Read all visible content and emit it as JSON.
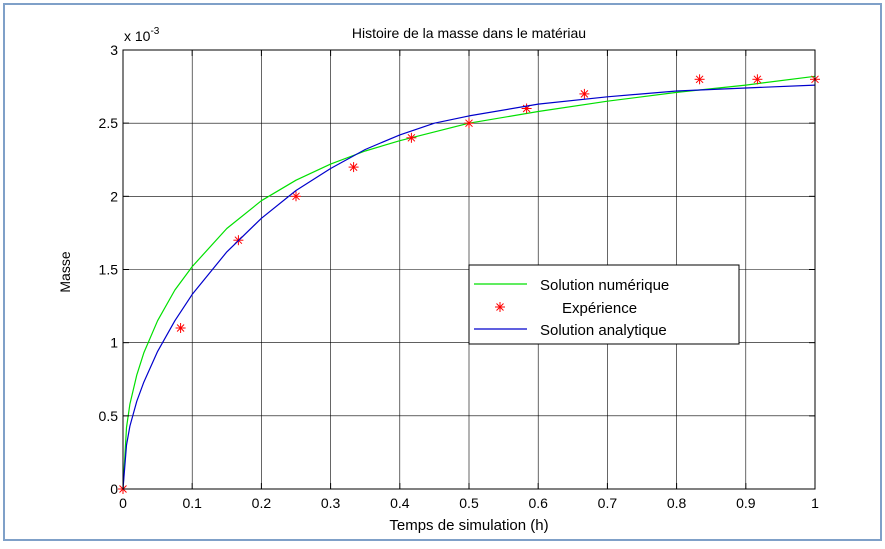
{
  "chart_data": {
    "type": "line",
    "title": "Histoire de la masse dans le matériau",
    "xlabel": "Temps de simulation  (h)",
    "ylabel": "Masse",
    "exponent_label": "x 10",
    "exponent_power": "-3",
    "xlim": [
      0,
      1
    ],
    "ylim": [
      0,
      3
    ],
    "x_ticks": [
      0,
      0.1,
      0.2,
      0.3,
      0.4,
      0.5,
      0.6,
      0.7,
      0.8,
      0.9,
      1
    ],
    "x_tick_labels": [
      "0",
      "0.1",
      "0.2",
      "0.3",
      "0.4",
      "0.5",
      "0.6",
      "0.7",
      "0.8",
      "0.9",
      "1"
    ],
    "y_ticks": [
      0,
      0.5,
      1,
      1.5,
      2,
      2.5,
      3
    ],
    "y_tick_labels": [
      "0",
      "0.5",
      "1",
      "1.5",
      "2",
      "2.5",
      "3"
    ],
    "grid": true,
    "legend_position": "center-right",
    "series": [
      {
        "name": "Solution numérique",
        "style": "line",
        "color": "#00e000",
        "x": [
          0,
          0.005,
          0.01,
          0.02,
          0.03,
          0.05,
          0.075,
          0.1,
          0.15,
          0.2,
          0.25,
          0.3,
          0.35,
          0.4,
          0.45,
          0.5,
          0.6,
          0.7,
          0.8,
          0.9,
          1.0
        ],
        "y": [
          0,
          0.42,
          0.58,
          0.78,
          0.93,
          1.15,
          1.36,
          1.52,
          1.78,
          1.97,
          2.11,
          2.22,
          2.31,
          2.38,
          2.44,
          2.5,
          2.58,
          2.65,
          2.71,
          2.76,
          2.82
        ]
      },
      {
        "name": "Expérience",
        "style": "marker",
        "color": "#ff0000",
        "x": [
          0,
          0.0833,
          0.1667,
          0.25,
          0.3333,
          0.4167,
          0.5,
          0.5833,
          0.6667,
          0.8333,
          0.9167,
          1.0
        ],
        "y": [
          0,
          1.1,
          1.7,
          2.0,
          2.2,
          2.4,
          2.5,
          2.6,
          2.7,
          2.8,
          2.8,
          2.8
        ]
      },
      {
        "name": "Solution analytique",
        "style": "line",
        "color": "#0000cc",
        "x": [
          0,
          0.005,
          0.01,
          0.02,
          0.03,
          0.05,
          0.075,
          0.1,
          0.15,
          0.2,
          0.25,
          0.3,
          0.35,
          0.4,
          0.45,
          0.5,
          0.6,
          0.7,
          0.8,
          0.9,
          1.0
        ],
        "y": [
          0,
          0.3,
          0.43,
          0.6,
          0.73,
          0.94,
          1.15,
          1.33,
          1.62,
          1.85,
          2.04,
          2.19,
          2.32,
          2.42,
          2.5,
          2.55,
          2.63,
          2.68,
          2.72,
          2.74,
          2.76
        ]
      }
    ]
  },
  "colors": {
    "frame_border": "#7fa0c8",
    "grid": "#000000",
    "axes": "#000000"
  }
}
